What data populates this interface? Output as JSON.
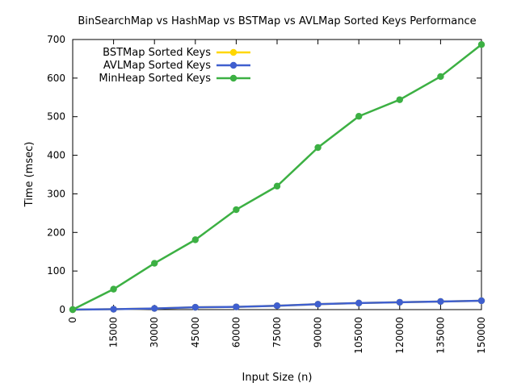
{
  "chart_data": {
    "type": "line",
    "title": "BinSearchMap vs HashMap vs BSTMap vs AVLMap Sorted Keys Performance",
    "xlabel": "Input Size (n)",
    "ylabel": "Time (msec)",
    "xlim": [
      0,
      150000
    ],
    "ylim": [
      0,
      700
    ],
    "x": [
      0,
      15000,
      30000,
      45000,
      60000,
      75000,
      90000,
      105000,
      120000,
      135000,
      150000
    ],
    "x_tick_labels": [
      "0",
      "15000",
      "30000",
      "45000",
      "60000",
      "75000",
      "90000",
      "105000",
      "120000",
      "135000",
      "150000"
    ],
    "y_ticks": [
      0,
      100,
      200,
      300,
      400,
      500,
      600,
      700
    ],
    "y_tick_labels": [
      "0",
      "100",
      "200",
      "300",
      "400",
      "500",
      "600",
      "700"
    ],
    "grid": false,
    "legend_position": "top-left",
    "series": [
      {
        "name": "BSTMap Sorted Keys",
        "color": "#FFD700",
        "values": [
          0,
          1,
          3,
          6,
          7,
          10,
          14,
          17,
          19,
          21,
          23
        ]
      },
      {
        "name": "AVLMap Sorted Keys",
        "color": "#3F5FCF",
        "values": [
          0,
          1,
          3,
          6,
          7,
          10,
          14,
          17,
          19,
          21,
          23
        ]
      },
      {
        "name": "MinHeap Sorted Keys",
        "color": "#3CB043",
        "values": [
          0,
          53,
          120,
          181,
          259,
          320,
          420,
          501,
          544,
          604,
          687
        ]
      }
    ]
  }
}
